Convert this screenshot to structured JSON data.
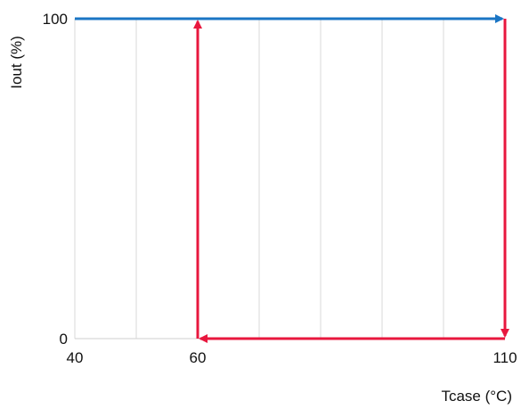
{
  "chart_data": {
    "type": "line",
    "title": "",
    "xlabel": "Tcase (°C)",
    "ylabel": "Iout (%)",
    "xlim": [
      40,
      110
    ],
    "ylim": [
      0,
      100
    ],
    "x_ticks": [
      40,
      60,
      110
    ],
    "y_ticks": [
      0,
      100
    ],
    "x_grid": [
      40,
      50,
      60,
      70,
      80,
      90,
      100,
      110
    ],
    "grid": true,
    "series": [
      {
        "color": "#1a75c4",
        "points": [
          [
            40,
            100
          ],
          [
            110,
            100
          ]
        ]
      },
      {
        "color": "#e8173e",
        "points": [
          [
            110,
            100
          ],
          [
            110,
            0
          ],
          [
            60,
            0
          ],
          [
            60,
            100
          ]
        ]
      }
    ]
  }
}
